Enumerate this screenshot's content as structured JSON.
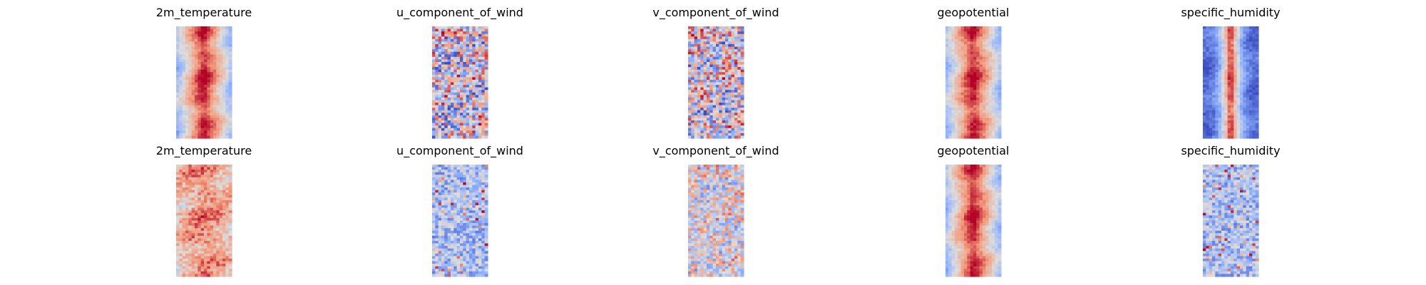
{
  "figure": {
    "colormap": "coolwarm",
    "colors": {
      "cold": "#3b4cc0",
      "neutral": "#dddddd",
      "warm": "#b40426",
      "background": "#ffffff"
    }
  },
  "chart_data": [
    {
      "type": "heatmap",
      "row": 1,
      "title": "2m_temperature",
      "pattern": "center-warm-band",
      "note_range": "mostly warm interior, cool edges"
    },
    {
      "type": "heatmap",
      "row": 1,
      "title": "u_component_of_wind",
      "pattern": "mixed-noise"
    },
    {
      "type": "heatmap",
      "row": 1,
      "title": "v_component_of_wind",
      "pattern": "mixed-noise"
    },
    {
      "type": "heatmap",
      "row": 1,
      "title": "geopotential",
      "pattern": "center-warm-band"
    },
    {
      "type": "heatmap",
      "row": 1,
      "title": "specific_humidity",
      "pattern": "narrow-warm-core"
    },
    {
      "type": "heatmap",
      "row": 2,
      "title": "2m_temperature",
      "pattern": "warm-speckle"
    },
    {
      "type": "heatmap",
      "row": 2,
      "title": "u_component_of_wind",
      "pattern": "cool-speckle"
    },
    {
      "type": "heatmap",
      "row": 2,
      "title": "v_component_of_wind",
      "pattern": "mixed-noise-light"
    },
    {
      "type": "heatmap",
      "row": 2,
      "title": "geopotential",
      "pattern": "center-warm-band"
    },
    {
      "type": "heatmap",
      "row": 2,
      "title": "specific_humidity",
      "pattern": "cool-speckle"
    }
  ]
}
